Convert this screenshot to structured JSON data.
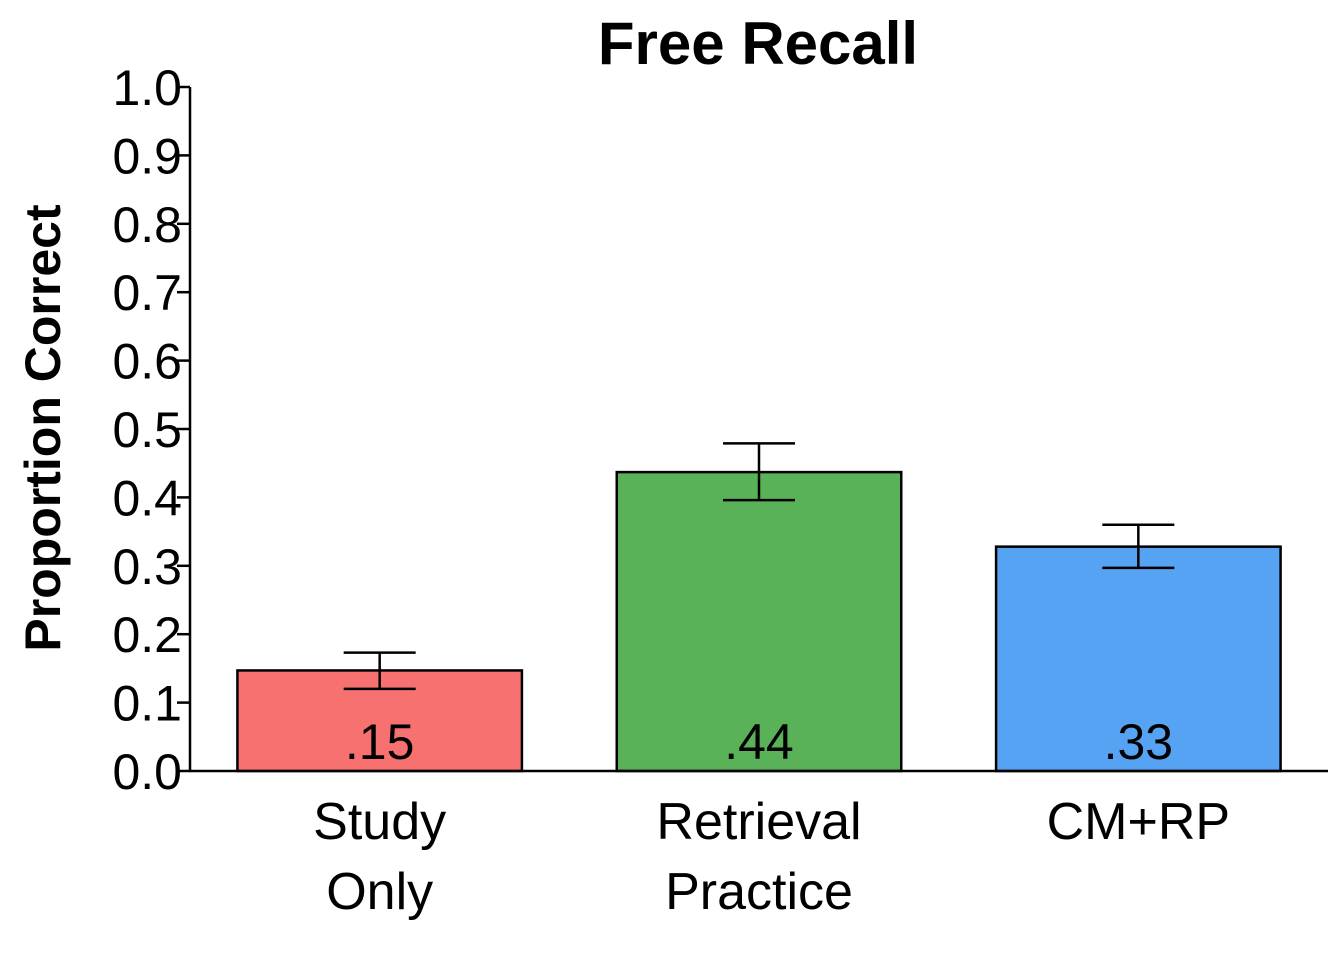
{
  "chart_data": {
    "type": "bar",
    "title": "Free Recall",
    "ylabel": "Proportion Correct",
    "xlabel": "",
    "ylim": [
      0,
      1.0
    ],
    "yticks": [
      "0.0",
      "0.1",
      "0.2",
      "0.3",
      "0.4",
      "0.5",
      "0.6",
      "0.7",
      "0.8",
      "0.9",
      "1.0"
    ],
    "categories": [
      [
        "Study",
        "Only"
      ],
      [
        "Retrieval",
        "Practice"
      ],
      [
        "CM+RP"
      ]
    ],
    "values": [
      0.147,
      0.437,
      0.328
    ],
    "error_low": [
      0.12,
      0.396,
      0.297
    ],
    "error_high": [
      0.173,
      0.479,
      0.36
    ],
    "data_labels": [
      ".15",
      ".44",
      ".33"
    ],
    "colors": [
      "#f87171",
      "#59b257",
      "#56a3f3"
    ],
    "grid": false
  }
}
